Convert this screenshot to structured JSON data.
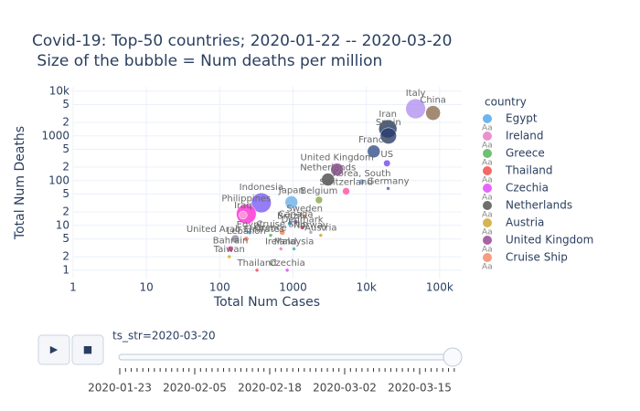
{
  "chart_data": {
    "type": "scatter",
    "title": "Covid-19: Top-50 countries; 2020-01-22  -- 2020-03-20",
    "subtitle": " Size of the bubble = Num deaths per million",
    "x_label": "Total Num Cases",
    "y_label": "Total Num Deaths",
    "x_log": true,
    "y_log": true,
    "grid": true,
    "xlim": [
      1,
      200000
    ],
    "ylim": [
      0.65,
      12500
    ],
    "xticks": [
      1,
      10,
      100,
      1000,
      {
        "value": 10000,
        "label": "10k"
      },
      {
        "value": 100000,
        "label": "100k"
      }
    ],
    "yticks": [
      1,
      2,
      5,
      10,
      {
        "value": 20,
        "label": "2"
      },
      {
        "value": 50,
        "label": "5"
      },
      100,
      {
        "value": 200,
        "label": "2"
      },
      {
        "value": 500,
        "label": "5"
      },
      1000,
      {
        "value": 2000,
        "label": "2"
      },
      {
        "value": 5000,
        "label": "5"
      },
      {
        "value": 10000,
        "label": "10k"
      }
    ],
    "legend_title": "country",
    "legend_symbol": "Aa",
    "legend_position": "right",
    "legend_visible_count": 9,
    "series": [
      {
        "name": "Egypt",
        "color": "#4aa3e8",
        "x": [
          256
        ],
        "y": [
          7
        ],
        "size": [
          3
        ]
      },
      {
        "name": "Ireland",
        "color": "#e377c2",
        "x": [
          683
        ],
        "y": [
          3
        ],
        "size": [
          2
        ]
      },
      {
        "name": "Greece",
        "color": "#4caf50",
        "x": [
          495
        ],
        "y": [
          6
        ],
        "size": [
          2
        ]
      },
      {
        "name": "Thailand",
        "color": "#ef4444",
        "x": [
          322
        ],
        "y": [
          1
        ],
        "size": [
          1
        ]
      },
      {
        "name": "Czechia",
        "color": "#e040fb",
        "x": [
          833
        ],
        "y": [
          1
        ],
        "size": [
          1
        ]
      },
      {
        "name": "Netherlands",
        "color": "#4a4a4a",
        "x": [
          2994
        ],
        "y": [
          106
        ],
        "size": [
          25
        ]
      },
      {
        "name": "Austria",
        "color": "#c9a227",
        "x": [
          2388
        ],
        "y": [
          6
        ],
        "size": [
          2
        ]
      },
      {
        "name": "United Kingdom",
        "color": "#8e3c8e",
        "x": [
          3983
        ],
        "y": [
          177
        ],
        "size": [
          25
        ]
      },
      {
        "name": "Cruise Ship",
        "color": "#f4845f",
        "x": [
          712
        ],
        "y": [
          7
        ],
        "size": [
          5
        ]
      },
      {
        "name": "Italy",
        "color": "#b392f0",
        "x": [
          47021
        ],
        "y": [
          4032
        ],
        "size": [
          60
        ]
      },
      {
        "name": "China",
        "color": "#8c6d4f",
        "x": [
          81250
        ],
        "y": [
          3253
        ],
        "size": [
          33
        ]
      },
      {
        "name": "Iran",
        "color": "#1f3864",
        "x": [
          19644
        ],
        "y": [
          1433
        ],
        "size": [
          50
        ]
      },
      {
        "name": "Spain",
        "color": "#2a3f6b",
        "x": [
          19980
        ],
        "y": [
          1002
        ],
        "size": [
          40
        ]
      },
      {
        "name": "France",
        "color": "#34508a",
        "x": [
          12612
        ],
        "y": [
          450
        ],
        "size": [
          25
        ]
      },
      {
        "name": "US",
        "color": "#7048e8",
        "x": [
          19101
        ],
        "y": [
          244
        ],
        "size": [
          7
        ]
      },
      {
        "name": "Korea, South",
        "color": "#5c9ee0",
        "x": [
          8652
        ],
        "y": [
          94
        ],
        "size": [
          5
        ]
      },
      {
        "name": "Switzerland",
        "color": "#ff4fa3",
        "x": [
          5294
        ],
        "y": [
          58
        ],
        "size": [
          8
        ]
      },
      {
        "name": "Germany",
        "color": "#4b5dbf",
        "x": [
          19848
        ],
        "y": [
          67
        ],
        "size": [
          2
        ]
      },
      {
        "name": "Belgium",
        "color": "#8aa64a",
        "x": [
          2257
        ],
        "y": [
          37
        ],
        "size": [
          8
        ]
      },
      {
        "name": "Sweden",
        "color": "#b07040",
        "x": [
          1439
        ],
        "y": [
          16
        ],
        "size": [
          3
        ]
      },
      {
        "name": "Japan",
        "color": "#6ab0e8",
        "x": [
          950
        ],
        "y": [
          33
        ],
        "size": [
          25
        ]
      },
      {
        "name": "Indonesia",
        "color": "#7a5cf5",
        "x": [
          369
        ],
        "y": [
          32
        ],
        "size": [
          60
        ]
      },
      {
        "name": "Philippines",
        "color": "#ff2ad4",
        "x": [
          230
        ],
        "y": [
          18
        ],
        "size": [
          60
        ]
      },
      {
        "name": "Iraq",
        "color": "#f7a8d8",
        "x": [
          208
        ],
        "y": [
          17
        ],
        "size": [
          10
        ]
      },
      {
        "name": "Canada",
        "color": "#6b3fa0",
        "x": [
          1087
        ],
        "y": [
          12
        ],
        "size": [
          3
        ]
      },
      {
        "name": "Brazil",
        "color": "#2e86c1",
        "x": [
          904
        ],
        "y": [
          11
        ],
        "size": [
          3
        ]
      },
      {
        "name": "Denmark",
        "color": "#b03a5b",
        "x": [
          1337
        ],
        "y": [
          9
        ],
        "size": [
          3
        ]
      },
      {
        "name": "Norway",
        "color": "#a0a0a0",
        "x": [
          1746
        ],
        "y": [
          7
        ],
        "size": [
          1
        ]
      },
      {
        "name": "Malaysia",
        "color": "#33aaaa",
        "x": [
          1030
        ],
        "y": [
          3
        ],
        "size": [
          1
        ]
      },
      {
        "name": "Lebanon",
        "color": "#ff7f50",
        "x": [
          230
        ],
        "y": [
          5
        ],
        "size": [
          4
        ]
      },
      {
        "name": "United Arab Emirates",
        "color": "#8c8c9c",
        "x": [
          163
        ],
        "y": [
          5
        ],
        "size": [
          10
        ]
      },
      {
        "name": "Taiwan",
        "color": "#d4a017",
        "x": [
          135
        ],
        "y": [
          2
        ],
        "size": [
          2
        ]
      },
      {
        "name": "Bahrain",
        "color": "#e91e8c",
        "x": [
          140
        ],
        "y": [
          3
        ],
        "size": [
          5
        ]
      }
    ],
    "slider": {
      "current_label": "ts_str=2020-03-20",
      "play_button": "▶",
      "stop_button": "■",
      "tick_labels": [
        "2020-01-23",
        "2020-02-05",
        "2020-02-18",
        "2020-03-02",
        "2020-03-15"
      ]
    }
  }
}
